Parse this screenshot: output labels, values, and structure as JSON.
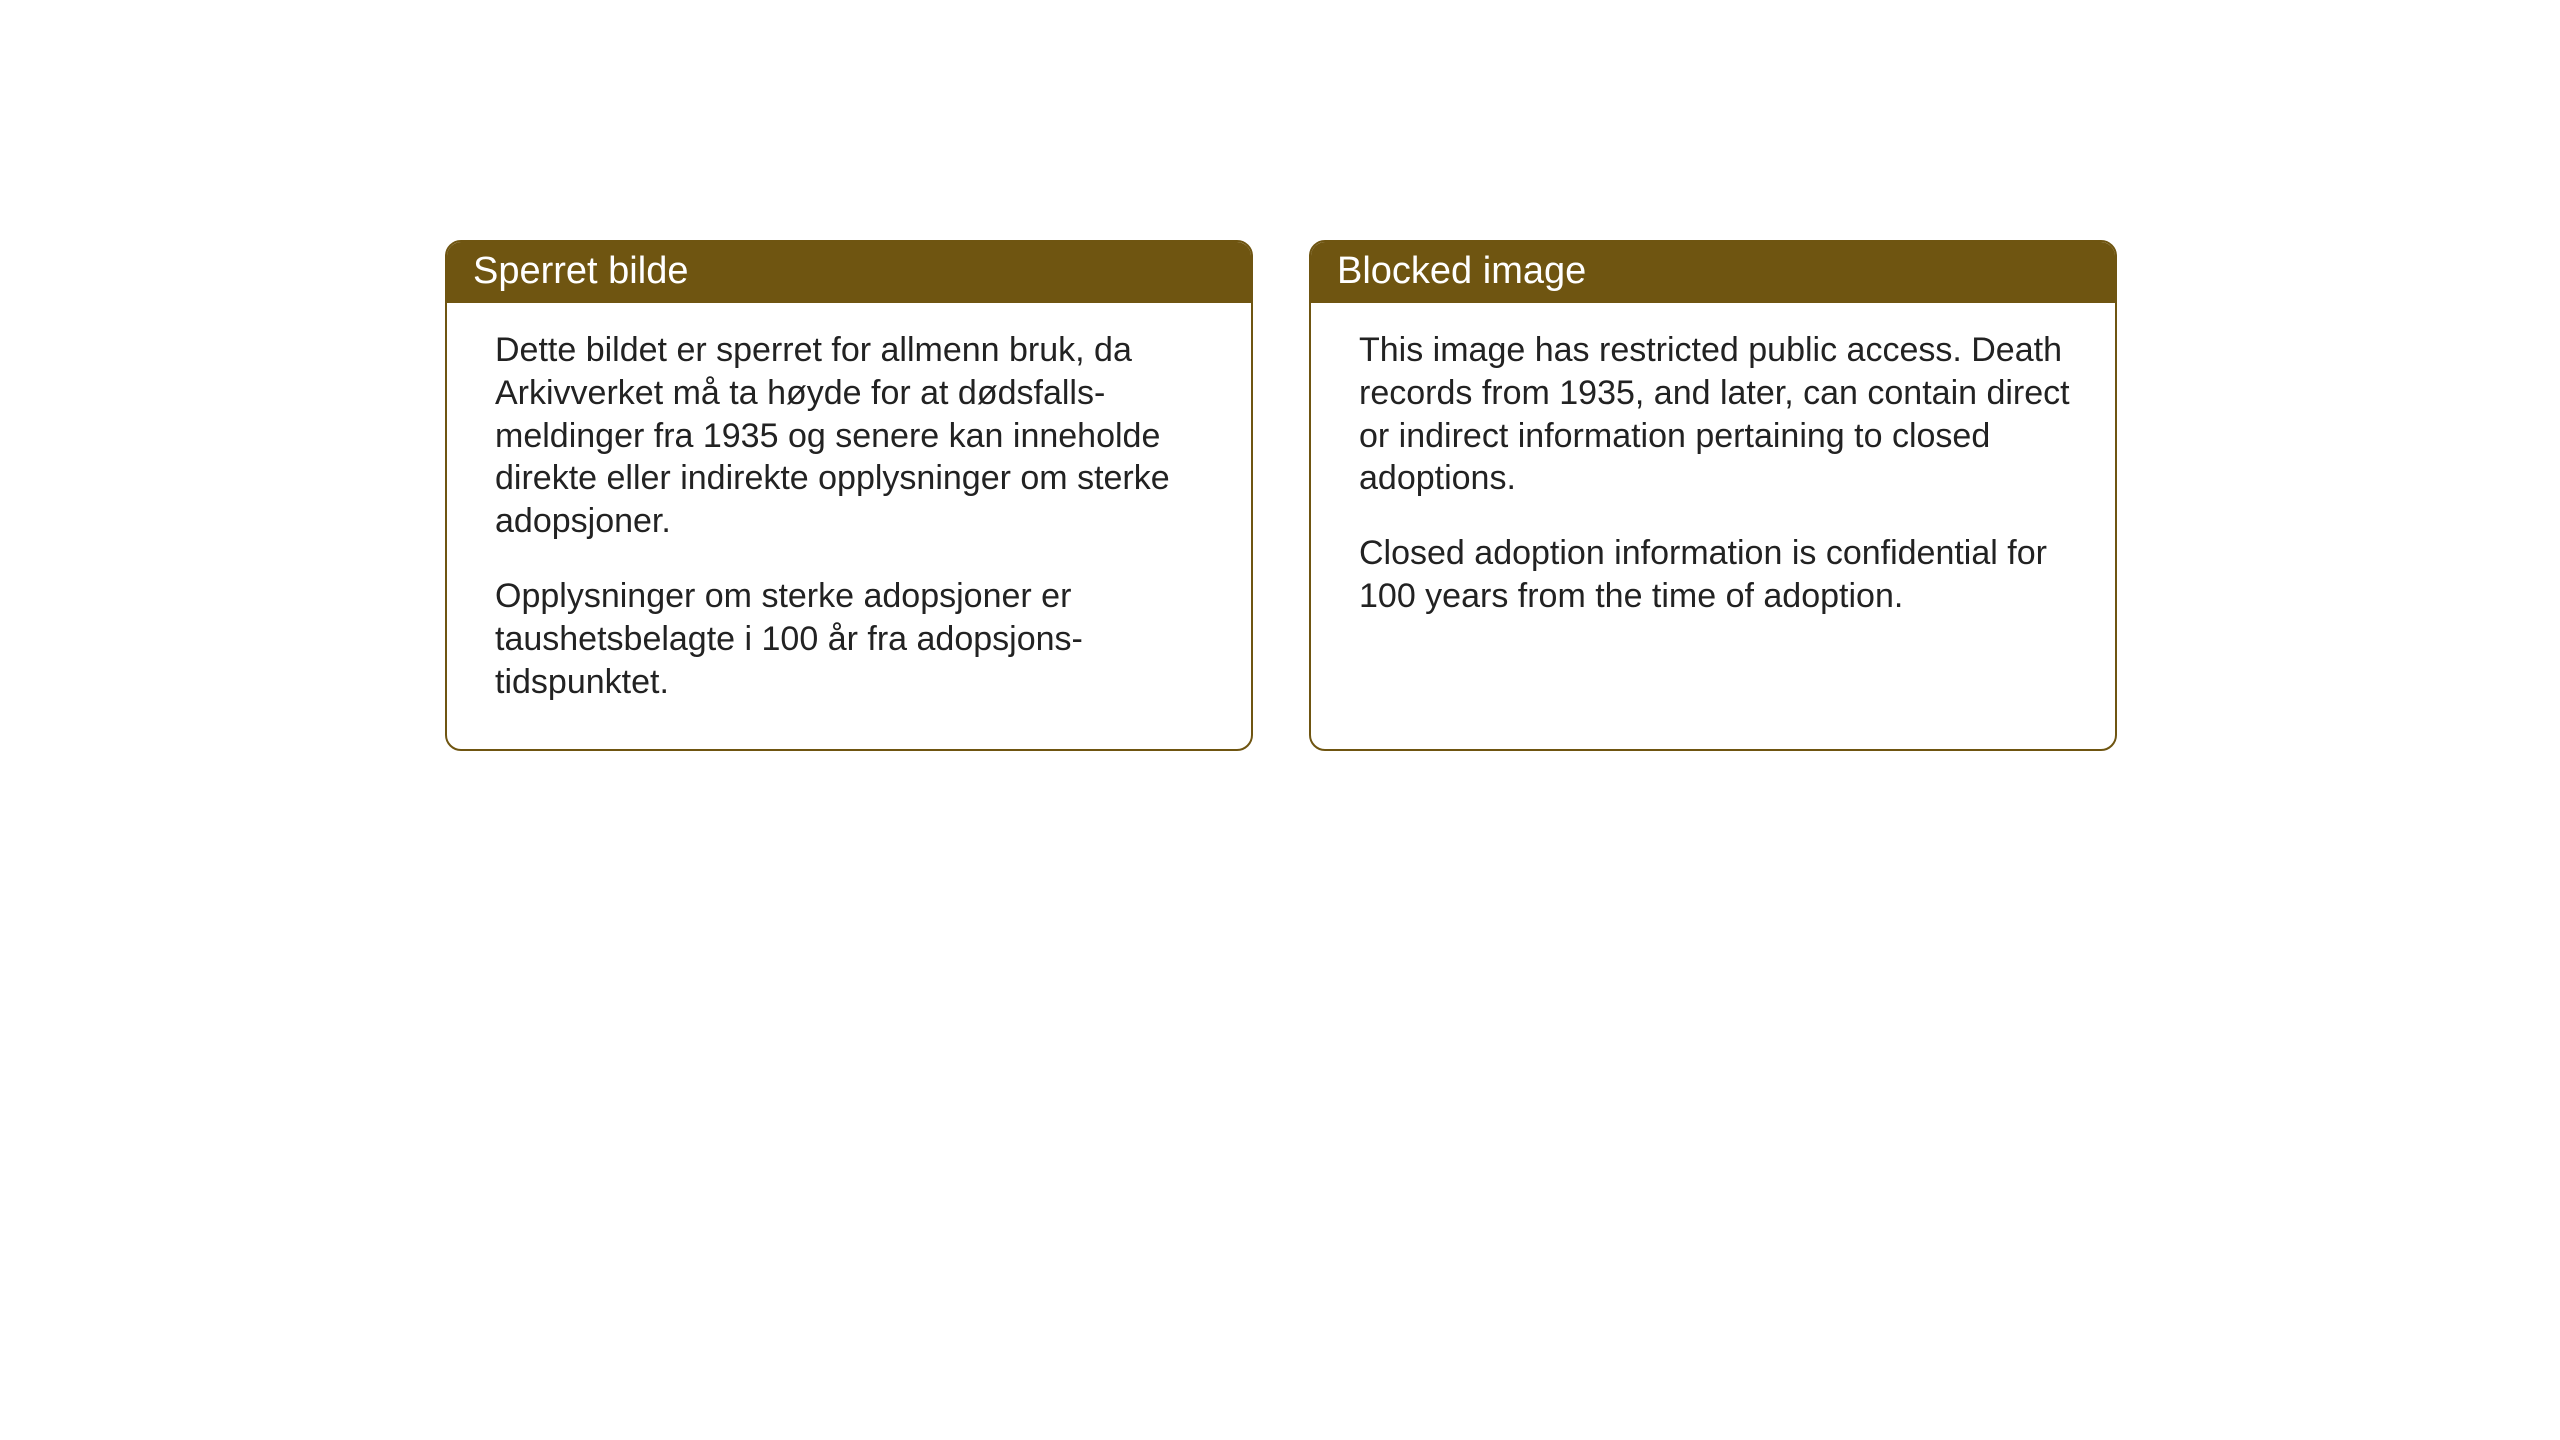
{
  "layout": {
    "background_color": "#ffffff",
    "card_border_color": "#6f5511",
    "card_border_radius": 16,
    "header_background": "#6f5511",
    "header_text_color": "#ffffff",
    "body_text_color": "#222222",
    "header_fontsize": 38,
    "body_fontsize": 34
  },
  "cards": {
    "norwegian": {
      "title": "Sperret bilde",
      "paragraph1": "Dette bildet er sperret for allmenn bruk, da Arkivverket må ta høyde for at dødsfalls-meldinger fra 1935 og senere kan inneholde direkte eller indirekte opplysninger om sterke adopsjoner.",
      "paragraph2": "Opplysninger om sterke adopsjoner er taushetsbelagte i 100 år fra adopsjons-tidspunktet."
    },
    "english": {
      "title": "Blocked image",
      "paragraph1": "This image has restricted public access. Death records from 1935, and later, can contain direct or indirect information pertaining to closed adoptions.",
      "paragraph2": "Closed adoption information is confidential for 100 years from the time of adoption."
    }
  }
}
